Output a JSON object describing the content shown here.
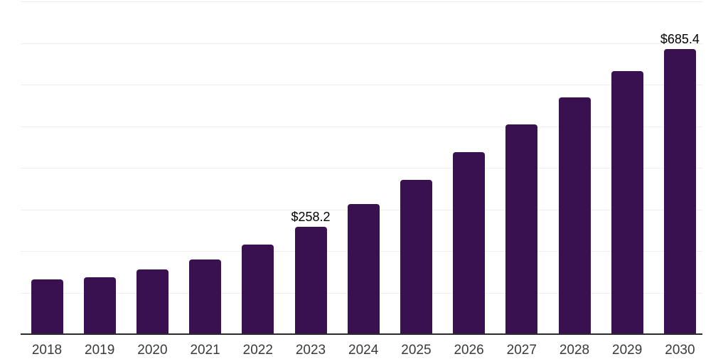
{
  "chart_data": {
    "type": "bar",
    "title": "",
    "xlabel": "",
    "ylabel": "",
    "categories": [
      "2018",
      "2019",
      "2020",
      "2021",
      "2022",
      "2023",
      "2024",
      "2025",
      "2026",
      "2027",
      "2028",
      "2029",
      "2030"
    ],
    "values": [
      132,
      137,
      156,
      180,
      216,
      258.2,
      313,
      371,
      438,
      505,
      570,
      633,
      685.4
    ],
    "data_labels": {
      "2023": "$258.2",
      "2030": "$685.4"
    },
    "ylim": [
      0,
      800
    ],
    "gridline_step": 100,
    "grid": true,
    "legend": "none",
    "colors": {
      "bar": "#391050",
      "gridline": "#efefef",
      "axis_line": "#2b2b2b",
      "tick_label": "#3a3a3a",
      "value_label": "#000000",
      "background": "#ffffff"
    }
  }
}
